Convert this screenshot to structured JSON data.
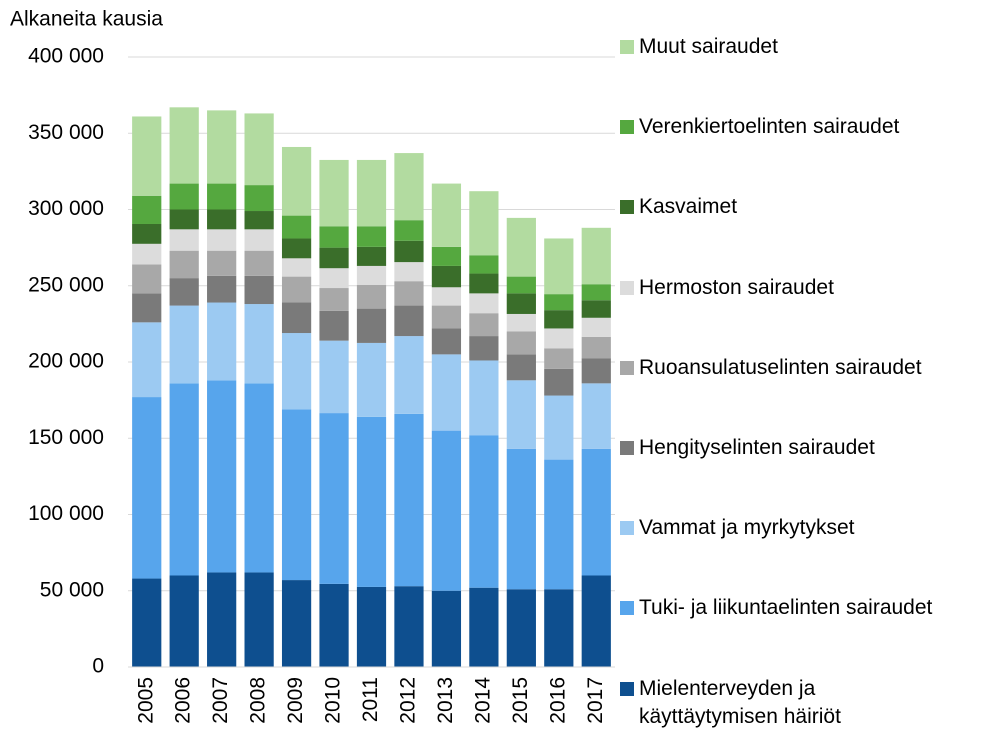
{
  "chart_data": {
    "type": "bar",
    "stacked": true,
    "y_label": "Alkaneita kausia",
    "categories": [
      "2005",
      "2006",
      "2007",
      "2008",
      "2009",
      "2010",
      "2011",
      "2012",
      "2013",
      "2014",
      "2015",
      "2016",
      "2017"
    ],
    "series": [
      {
        "name": "Mielenterveyden ja käyttäytymisen häiriöt",
        "color": "#0e4f8f",
        "values": [
          58000,
          60000,
          62000,
          62000,
          57000,
          54500,
          52500,
          53000,
          50000,
          52000,
          51000,
          51000,
          60000
        ]
      },
      {
        "name": "Tuki- ja liikuntaelinten sairaudet",
        "color": "#57a5ec",
        "values": [
          119000,
          126000,
          126000,
          124000,
          112000,
          112000,
          111500,
          113000,
          105000,
          100000,
          92000,
          85000,
          83000
        ]
      },
      {
        "name": "Vammat ja myrkytykset",
        "color": "#9ccaf2",
        "values": [
          49000,
          51000,
          51000,
          52000,
          50000,
          47500,
          48500,
          51000,
          50000,
          49000,
          45000,
          42000,
          43000
        ]
      },
      {
        "name": "Hengityselinten sairaudet",
        "color": "#7a7a7a",
        "values": [
          19000,
          18000,
          17500,
          18500,
          20000,
          19500,
          22500,
          20000,
          17000,
          16000,
          17000,
          17500,
          16500
        ]
      },
      {
        "name": "Ruoansulatuselinten sairaudet",
        "color": "#a8a8a8",
        "values": [
          19000,
          18000,
          16500,
          16500,
          17000,
          15000,
          15500,
          16000,
          15000,
          15000,
          15000,
          13500,
          14000
        ]
      },
      {
        "name": "Hermoston sairaudet",
        "color": "#dcdcdc",
        "values": [
          13500,
          14000,
          14000,
          14000,
          12000,
          13000,
          12500,
          12500,
          12000,
          13000,
          11500,
          13000,
          12500
        ]
      },
      {
        "name": "Kasvaimet",
        "color": "#3a6e2a",
        "values": [
          13000,
          13000,
          13000,
          12000,
          13000,
          13500,
          12500,
          14000,
          14000,
          13000,
          13500,
          12000,
          11500
        ]
      },
      {
        "name": "Verenkiertoelinten sairaudet",
        "color": "#55a83f",
        "values": [
          18500,
          17000,
          17000,
          17000,
          15000,
          14000,
          13500,
          13500,
          12500,
          12000,
          11000,
          10500,
          10500
        ]
      },
      {
        "name": "Muut sairaudet",
        "color": "#b2dba0",
        "values": [
          52000,
          50000,
          48000,
          47000,
          45000,
          43500,
          43500,
          44000,
          41500,
          42000,
          38500,
          36500,
          37000
        ]
      }
    ],
    "ylim": [
      0,
      400000
    ],
    "yticks": [
      {
        "value": 0,
        "label": "0"
      },
      {
        "value": 50000,
        "label": "50 000"
      },
      {
        "value": 100000,
        "label": "100 000"
      },
      {
        "value": 150000,
        "label": "150 000"
      },
      {
        "value": 200000,
        "label": "200 000"
      },
      {
        "value": 250000,
        "label": "250 000"
      },
      {
        "value": 300000,
        "label": "300 000"
      },
      {
        "value": 350000,
        "label": "350 000"
      },
      {
        "value": 400000,
        "label": "400 000"
      }
    ],
    "grid": true,
    "legend": "right"
  }
}
